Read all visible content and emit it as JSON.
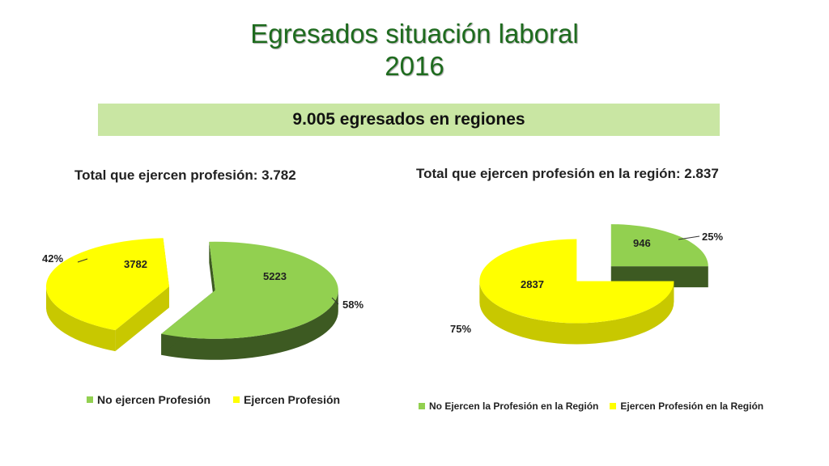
{
  "header": {
    "title_line1": "Egresados situación laboral",
    "title_line2": "2016",
    "banner": "9.005 egresados en regiones"
  },
  "colors": {
    "green_top": "#92d050",
    "green_side": "#3d5a22",
    "yellow_top": "#ffff00",
    "yellow_side": "#c8c800",
    "title_green": "#1e6b1e",
    "banner_bg": "#c9e6a3"
  },
  "chart_data": [
    {
      "type": "pie",
      "style": "3d-exploded",
      "title": "Total que ejercen profesión: 3.782",
      "categories": [
        "No ejercen Profesión",
        "Ejercen Profesión"
      ],
      "values": [
        5223,
        3782
      ],
      "percent_labels": [
        "58%",
        "42%"
      ],
      "value_labels": [
        "5223",
        "3782"
      ],
      "colors": [
        "#92d050",
        "#ffff00"
      ],
      "legend": "bottom"
    },
    {
      "type": "pie",
      "style": "3d-exploded",
      "title": "Total que ejercen profesión en la región: 2.837",
      "categories": [
        "No Ejercen la Profesión en la Región",
        "Ejercen Profesión en la Región"
      ],
      "values": [
        946,
        2837
      ],
      "percent_labels": [
        "25%",
        "75%"
      ],
      "value_labels": [
        "946",
        "2837"
      ],
      "colors": [
        "#92d050",
        "#ffff00"
      ],
      "legend": "bottom"
    }
  ]
}
